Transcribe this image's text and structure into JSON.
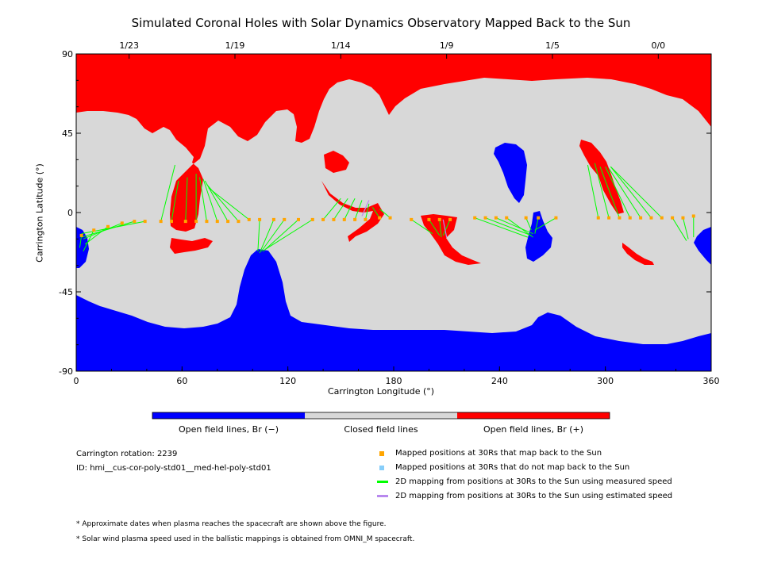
{
  "title": "Simulated Coronal Holes with Solar Dynamics Observatory Mapped Back to the Sun",
  "colors": {
    "closed": "#d8d8d8",
    "open_pos": "#ff0000",
    "open_neg": "#0000ff",
    "mapped_point": "#ffa500",
    "unmapped_point": "#87cefa",
    "measured_line": "#00ff00",
    "estimated_line": "#b888ee"
  },
  "chart_data": {
    "type": "map",
    "xlabel": "Carrington Longitude (°)",
    "ylabel": "Carrington Latitude (°)",
    "xlim": [
      0,
      360
    ],
    "ylim": [
      -90,
      90
    ],
    "xticks": [
      "0",
      "60",
      "120",
      "180",
      "240",
      "300",
      "360"
    ],
    "yticks": [
      "90",
      "45",
      "0",
      "-45",
      "-90"
    ],
    "top_date_ticks": [
      {
        "label": "1/23",
        "lon": 30
      },
      {
        "label": "1/19",
        "lon": 90
      },
      {
        "label": "1/14",
        "lon": 150
      },
      {
        "label": "1/9",
        "lon": 210
      },
      {
        "label": "1/5",
        "lon": 270
      },
      {
        "label": "0/0",
        "lon": 330
      }
    ],
    "colorbar": [
      {
        "label": "Open field lines, Br (−)",
        "color": "#0000ff"
      },
      {
        "label": "Closed field lines",
        "color": "#d8d8d8"
      },
      {
        "label": "Open field lines, Br (+)",
        "color": "#ff0000"
      }
    ],
    "mapped_points": [
      {
        "lon": 3,
        "lat": -13,
        "foot_lon": 2,
        "foot_lat": -20
      },
      {
        "lon": 10,
        "lat": -10,
        "foot_lon": 4,
        "foot_lat": -22
      },
      {
        "lon": 18,
        "lat": -8,
        "foot_lon": 5,
        "foot_lat": -18
      },
      {
        "lon": 26,
        "lat": -6,
        "foot_lon": 4,
        "foot_lat": -15
      },
      {
        "lon": 33,
        "lat": -5,
        "foot_lon": 3,
        "foot_lat": -14
      },
      {
        "lon": 39,
        "lat": -5,
        "foot_lon": 3,
        "foot_lat": -12
      },
      {
        "lon": 48,
        "lat": -5,
        "foot_lon": 56,
        "foot_lat": 27
      },
      {
        "lon": 54,
        "lat": -5,
        "foot_lon": 58,
        "foot_lat": 18
      },
      {
        "lon": 62,
        "lat": -5,
        "foot_lon": 63,
        "foot_lat": 20
      },
      {
        "lon": 68,
        "lat": -5,
        "foot_lon": 68,
        "foot_lat": 22
      },
      {
        "lon": 74,
        "lat": -5,
        "foot_lon": 70,
        "foot_lat": 20
      },
      {
        "lon": 80,
        "lat": -5,
        "foot_lon": 72,
        "foot_lat": 19
      },
      {
        "lon": 86,
        "lat": -5,
        "foot_lon": 73,
        "foot_lat": 18
      },
      {
        "lon": 92,
        "lat": -5,
        "foot_lon": 74,
        "foot_lat": 16
      },
      {
        "lon": 98,
        "lat": -4,
        "foot_lon": 75,
        "foot_lat": 14
      },
      {
        "lon": 104,
        "lat": -4,
        "foot_lon": 103,
        "foot_lat": -22
      },
      {
        "lon": 112,
        "lat": -4,
        "foot_lon": 104,
        "foot_lat": -23
      },
      {
        "lon": 118,
        "lat": -4,
        "foot_lon": 105,
        "foot_lat": -22
      },
      {
        "lon": 126,
        "lat": -4,
        "foot_lon": 106,
        "foot_lat": -22
      },
      {
        "lon": 134,
        "lat": -4,
        "foot_lon": 107,
        "foot_lat": -21
      },
      {
        "lon": 140,
        "lat": -4,
        "foot_lon": 150,
        "foot_lat": 8
      },
      {
        "lon": 146,
        "lat": -4,
        "foot_lon": 154,
        "foot_lat": 8
      },
      {
        "lon": 152,
        "lat": -4,
        "foot_lon": 158,
        "foot_lat": 8
      },
      {
        "lon": 158,
        "lat": -4,
        "foot_lon": 162,
        "foot_lat": 7
      },
      {
        "lon": 164,
        "lat": -4,
        "foot_lon": 166,
        "foot_lat": 5
      },
      {
        "lon": 172,
        "lat": -3,
        "foot_lon": 168,
        "foot_lat": 3
      },
      {
        "lon": 178,
        "lat": -3,
        "foot_lon": 172,
        "foot_lat": 2
      },
      {
        "lon": 190,
        "lat": -4,
        "foot_lon": 202,
        "foot_lat": -12
      },
      {
        "lon": 200,
        "lat": -4,
        "foot_lon": 206,
        "foot_lat": -13
      },
      {
        "lon": 206,
        "lat": -4,
        "foot_lon": 207,
        "foot_lat": -14
      },
      {
        "lon": 212,
        "lat": -4,
        "foot_lon": 208,
        "foot_lat": -13
      },
      {
        "lon": 226,
        "lat": -3,
        "foot_lon": 256,
        "foot_lat": -14
      },
      {
        "lon": 232,
        "lat": -3,
        "foot_lon": 258,
        "foot_lat": -13
      },
      {
        "lon": 238,
        "lat": -3,
        "foot_lon": 259,
        "foot_lat": -12
      },
      {
        "lon": 244,
        "lat": -3,
        "foot_lon": 259,
        "foot_lat": -14
      },
      {
        "lon": 255,
        "lat": -3,
        "foot_lon": 258,
        "foot_lat": -10
      },
      {
        "lon": 262,
        "lat": -3,
        "foot_lon": 260,
        "foot_lat": -12
      },
      {
        "lon": 272,
        "lat": -3,
        "foot_lon": 260,
        "foot_lat": -10
      },
      {
        "lon": 296,
        "lat": -3,
        "foot_lon": 290,
        "foot_lat": 27
      },
      {
        "lon": 302,
        "lat": -3,
        "foot_lon": 294,
        "foot_lat": 28
      },
      {
        "lon": 308,
        "lat": -3,
        "foot_lon": 297,
        "foot_lat": 26
      },
      {
        "lon": 314,
        "lat": -3,
        "foot_lon": 300,
        "foot_lat": 26
      },
      {
        "lon": 320,
        "lat": -3,
        "foot_lon": 302,
        "foot_lat": 25
      },
      {
        "lon": 326,
        "lat": -3,
        "foot_lon": 303,
        "foot_lat": 26
      },
      {
        "lon": 332,
        "lat": -3,
        "foot_lon": 303,
        "foot_lat": 26
      },
      {
        "lon": 338,
        "lat": -3,
        "foot_lon": 346,
        "foot_lat": -16
      },
      {
        "lon": 344,
        "lat": -3,
        "foot_lon": 347,
        "foot_lat": -15
      },
      {
        "lon": 350,
        "lat": -2,
        "foot_lon": 350,
        "foot_lat": -14
      }
    ],
    "estimated_lines": [
      {
        "lon": 162,
        "lat": -2,
        "foot_lon": 166,
        "foot_lat": 7
      },
      {
        "lon": 208,
        "lat": -4,
        "foot_lon": 210,
        "foot_lat": -14
      }
    ]
  },
  "legend": {
    "items": [
      {
        "label": "Mapped positions at 30Rs that map back to the Sun",
        "symbol": "square",
        "color": "#ffa500"
      },
      {
        "label": "Mapped positions at 30Rs that do not map back to the Sun",
        "symbol": "square",
        "color": "#87cefa"
      },
      {
        "label": "2D mapping from positions at 30Rs to the Sun using measured speed",
        "symbol": "line",
        "color": "#00ff00"
      },
      {
        "label": "2D mapping from positions at 30Rs to the Sun using estimated speed",
        "symbol": "line",
        "color": "#b888ee"
      }
    ]
  },
  "info": {
    "rotation": "Carrington rotation: 2239",
    "id": "ID: hmi__cus-cor-poly-std01__med-hel-poly-std01"
  },
  "notes": [
    "* Approximate dates when plasma reaches the spacecraft are shown above the figure.",
    "* Solar wind plasma speed used in the ballistic mappings is obtained from OMNI_M spacecraft."
  ]
}
